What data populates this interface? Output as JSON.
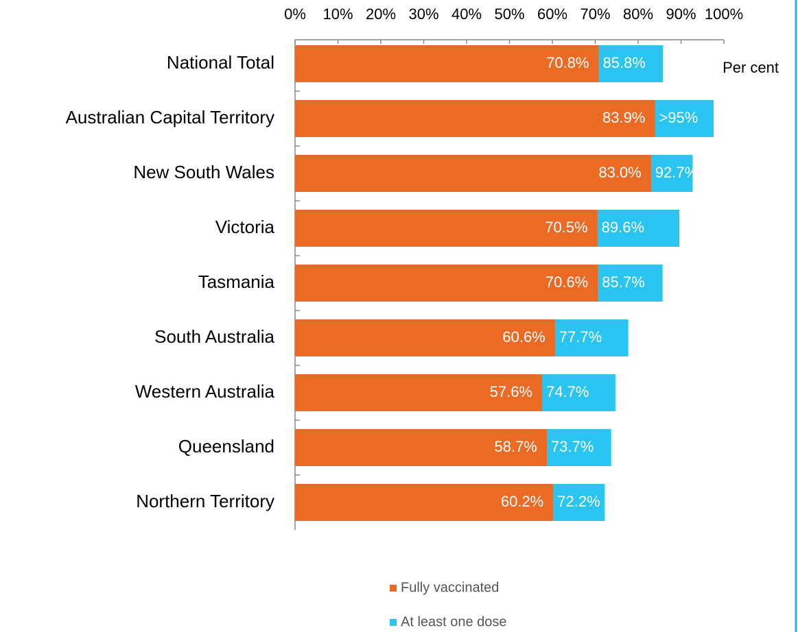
{
  "chart_data": {
    "type": "bar",
    "orientation": "horizontal",
    "overlap": true,
    "annotation": "Per cent",
    "categories": [
      "National Total",
      "Australian Capital Territory",
      "New South Wales",
      "Victoria",
      "Tasmania",
      "South Australia",
      "Western Australia",
      "Queensland",
      "Northern Territory"
    ],
    "series": [
      {
        "name": "At least one dose",
        "color": "#29c4f0",
        "values": [
          85.8,
          97.6,
          92.7,
          89.6,
          85.7,
          77.7,
          74.7,
          73.7,
          72.2
        ],
        "value_labels": [
          "85.8%",
          ">95%",
          "92.7%",
          "89.6%",
          "85.7%",
          "77.7%",
          "74.7%",
          "73.7%",
          "72.2%"
        ]
      },
      {
        "name": "Fully vaccinated",
        "color": "#ec6b24",
        "values": [
          70.8,
          83.9,
          83.0,
          70.5,
          70.6,
          60.6,
          57.6,
          58.7,
          60.2
        ],
        "value_labels": [
          "70.8%",
          "83.9%",
          "83.0%",
          "70.5%",
          "70.6%",
          "60.6%",
          "57.6%",
          "58.7%",
          "60.2%"
        ]
      }
    ],
    "xlim": [
      0,
      100
    ],
    "xticks": [
      {
        "value": 0,
        "label": "0%"
      },
      {
        "value": 10,
        "label": "10%"
      },
      {
        "value": 20,
        "label": "20%"
      },
      {
        "value": 30,
        "label": "30%"
      },
      {
        "value": 40,
        "label": "40%"
      },
      {
        "value": 50,
        "label": "50%"
      },
      {
        "value": 60,
        "label": "60%"
      },
      {
        "value": 70,
        "label": "70%"
      },
      {
        "value": 80,
        "label": "80%"
      },
      {
        "value": 90,
        "label": "90%"
      },
      {
        "value": 100,
        "label": "100%"
      }
    ],
    "grid": false,
    "legend": "bottom"
  }
}
